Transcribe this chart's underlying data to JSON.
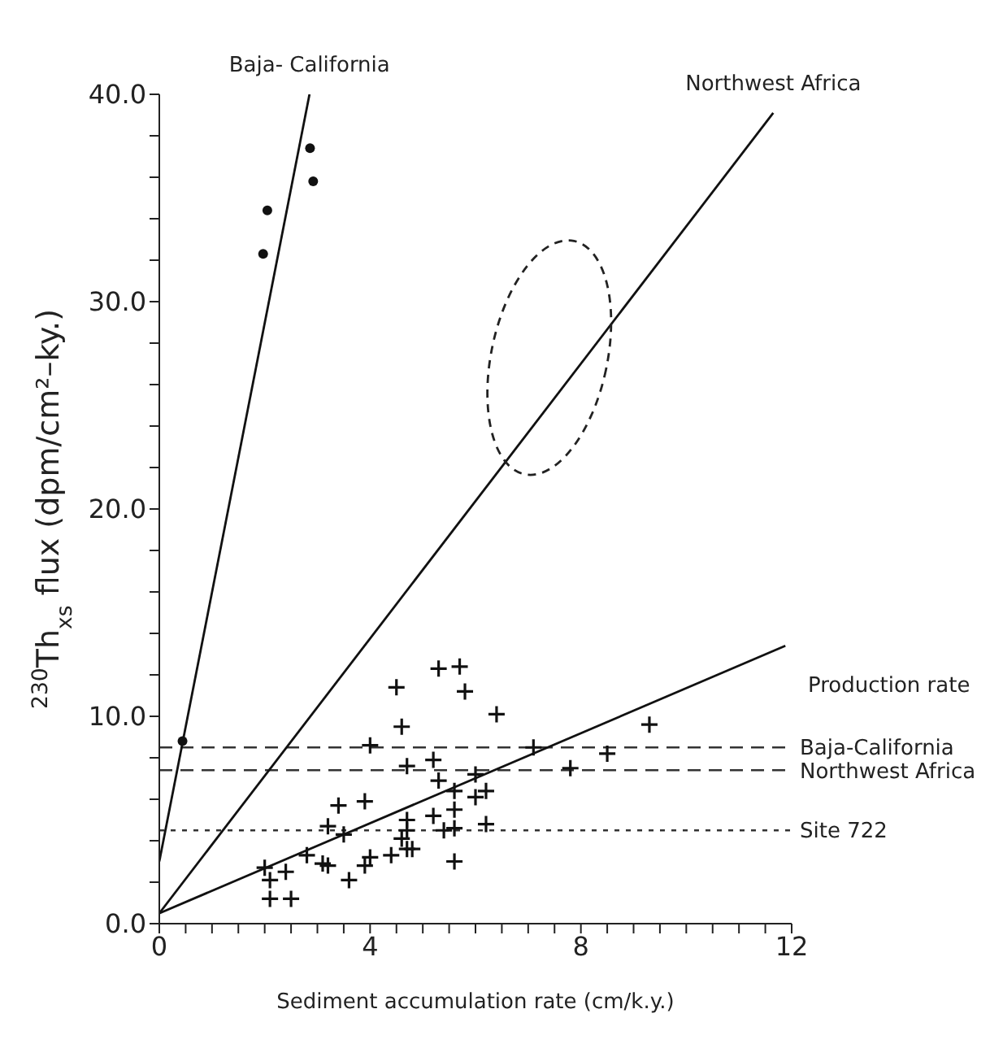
{
  "chart_data": {
    "type": "scatter",
    "ylabel": "$^{230}$Th$_{xs}$  flux  (dpm/cm²–ky.)",
    "xlabel": "Sediment accumulation rate  (cm/k.y.)",
    "xlim": [
      0,
      12
    ],
    "ylim": [
      0,
      40
    ],
    "xticks": [
      0,
      {
        "value": 0.5,
        "label": null
      },
      {
        "value": 1,
        "label": null
      },
      {
        "value": 1.5,
        "label": null
      },
      {
        "value": 2,
        "label": null
      },
      {
        "value": 2.5,
        "label": null
      },
      {
        "value": 3,
        "label": null
      },
      {
        "value": 3.5,
        "label": null
      },
      4,
      {
        "value": 4.5,
        "label": null
      },
      {
        "value": 5,
        "label": null
      },
      {
        "value": 5.5,
        "label": null
      },
      {
        "value": 6,
        "label": null
      },
      {
        "value": 6.5,
        "label": null
      },
      {
        "value": 7,
        "label": null
      },
      {
        "value": 7.5,
        "label": null
      },
      8,
      {
        "value": 8.5,
        "label": null
      },
      {
        "value": 9,
        "label": null
      },
      {
        "value": 9.5,
        "label": null
      },
      {
        "value": 10,
        "label": null
      },
      {
        "value": 10.5,
        "label": null
      },
      {
        "value": 11,
        "label": null
      },
      {
        "value": 11.5,
        "label": null
      },
      12
    ],
    "yticks": [
      {
        "value": 0,
        "label": "0.0"
      },
      {
        "value": 2,
        "label": null
      },
      {
        "value": 4,
        "label": null
      },
      {
        "value": 6,
        "label": null
      },
      {
        "value": 8,
        "label": null
      },
      {
        "value": 10,
        "label": "10.0"
      },
      {
        "value": 12,
        "label": null
      },
      {
        "value": 14,
        "label": null
      },
      {
        "value": 16,
        "label": null
      },
      {
        "value": 18,
        "label": null
      },
      {
        "value": 20,
        "label": "20.0"
      },
      {
        "value": 22,
        "label": null
      },
      {
        "value": 24,
        "label": null
      },
      {
        "value": 26,
        "label": null
      },
      {
        "value": 28,
        "label": null
      },
      {
        "value": 30,
        "label": "30.0"
      },
      {
        "value": 32,
        "label": null
      },
      {
        "value": 34,
        "label": null
      },
      {
        "value": 36,
        "label": null
      },
      {
        "value": 38,
        "label": null
      },
      {
        "value": 40,
        "label": "40.0"
      }
    ],
    "series": [
      {
        "marker": "circle",
        "color": "#111111",
        "x": [
          0.44,
          1.97,
          2.05,
          2.92,
          2.86
        ],
        "values": [
          8.8,
          32.3,
          34.4,
          35.8,
          37.4
        ]
      },
      {
        "type": "line",
        "name": "Baja- California",
        "marker": "none",
        "color": "#111111",
        "x": [
          0,
          2.85
        ],
        "values": [
          3.0,
          40
        ]
      },
      {
        "type": "line",
        "name": "Northwest Africa",
        "marker": "none",
        "color": "#111111",
        "x": [
          0,
          11.65
        ],
        "values": [
          0.5,
          39.1
        ]
      },
      {
        "marker": "cross",
        "color": "#111111",
        "x": [
          5.3,
          5.7,
          4.5,
          5.8,
          6.4,
          4.6,
          9.3,
          4.0,
          7.1,
          8.5,
          5.2,
          4.7,
          7.8,
          6.0,
          5.3,
          5.6,
          6.2,
          6.0,
          3.4,
          3.9,
          5.6,
          5.2,
          4.7,
          6.2,
          3.2,
          3.5,
          5.6,
          5.4,
          4.7,
          4.6,
          4.7,
          4.8,
          4.4,
          5.6,
          4.0,
          3.9,
          3.6,
          3.1,
          3.2,
          2.8,
          2.4,
          2.0,
          2.1,
          2.1,
          2.5
        ],
        "values": [
          12.3,
          12.4,
          11.4,
          11.2,
          10.1,
          9.5,
          9.6,
          8.6,
          8.5,
          8.2,
          7.9,
          7.6,
          7.5,
          7.2,
          6.9,
          6.4,
          6.4,
          6.1,
          5.7,
          5.9,
          5.5,
          5.2,
          5.0,
          4.8,
          4.7,
          4.3,
          4.6,
          4.5,
          4.5,
          4.1,
          3.6,
          3.6,
          3.3,
          3.0,
          3.2,
          2.8,
          2.1,
          2.9,
          2.8,
          3.3,
          2.5,
          2.7,
          2.1,
          1.2,
          1.2
        ]
      },
      {
        "type": "line",
        "marker": "none",
        "color": "#111111",
        "x": [
          0,
          11.88
        ],
        "values": [
          0.5,
          13.4
        ]
      }
    ],
    "ref_lines": [
      {
        "axis": "y",
        "value": 8.5,
        "label": "Baja-California",
        "line_style": "dashed",
        "color": "#333333"
      },
      {
        "axis": "y",
        "value": 7.4,
        "label": "Northwest Africa",
        "line_style": "dashed",
        "color": "#333333"
      },
      {
        "axis": "y",
        "value": 4.5,
        "label": "Site 722",
        "line_style": "dotted",
        "color": "#333333"
      }
    ],
    "annotations": [
      "Production rate"
    ]
  }
}
